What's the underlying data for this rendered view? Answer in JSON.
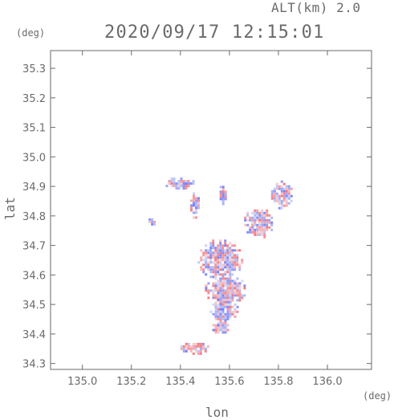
{
  "chart_data": {
    "type": "heatmap",
    "title": "2020/09/17 12:15:01",
    "subtitle": "ALT(km) 2.0",
    "xlabel": "lon",
    "ylabel": "lat",
    "x_unit": "(deg)",
    "y_unit": "(deg)",
    "xlim": [
      134.87,
      136.18
    ],
    "ylim": [
      34.28,
      35.36
    ],
    "x_ticks": [
      135.0,
      135.2,
      135.4,
      135.6,
      135.8,
      136.0
    ],
    "x_tick_labels": [
      "135.0",
      "135.2",
      "135.4",
      "135.6",
      "135.8",
      "136.0"
    ],
    "y_ticks": [
      34.3,
      34.4,
      34.5,
      34.6,
      34.7,
      34.8,
      34.9,
      35.0,
      35.1,
      35.2,
      35.3
    ],
    "y_tick_labels": [
      "34.3",
      "34.4",
      "34.5",
      "34.6",
      "34.7",
      "34.8",
      "34.9",
      "35.0",
      "35.1",
      "35.2",
      "35.3"
    ],
    "grid": false,
    "colors": {
      "positive": "#e8505a",
      "negative": "#5060e0",
      "axis": "#6a6a6a"
    },
    "regions": [
      {
        "lon": [
          135.47,
          135.66
        ],
        "lat": [
          34.58,
          34.72
        ],
        "color": "mixed"
      },
      {
        "lon": [
          135.5,
          135.67
        ],
        "lat": [
          34.5,
          34.6
        ],
        "color": "mixed"
      },
      {
        "lon": [
          135.52,
          135.64
        ],
        "lat": [
          34.44,
          34.52
        ],
        "color": "negative"
      },
      {
        "lon": [
          135.53,
          135.6
        ],
        "lat": [
          34.4,
          34.45
        ],
        "color": "mixed"
      },
      {
        "lon": [
          135.33,
          135.46
        ],
        "lat": [
          34.89,
          34.93
        ],
        "color": "mixed"
      },
      {
        "lon": [
          135.77,
          135.86
        ],
        "lat": [
          34.82,
          34.92
        ],
        "color": "mixed"
      },
      {
        "lon": [
          135.66,
          135.78
        ],
        "lat": [
          34.72,
          34.83
        ],
        "color": "mixed"
      },
      {
        "lon": [
          135.4,
          135.52
        ],
        "lat": [
          34.33,
          34.37
        ],
        "color": "mixed"
      },
      {
        "lon": [
          135.27,
          135.3
        ],
        "lat": [
          34.76,
          34.8
        ],
        "color": "negative"
      },
      {
        "lon": [
          135.44,
          135.48
        ],
        "lat": [
          34.79,
          34.88
        ],
        "color": "mixed"
      },
      {
        "lon": [
          135.56,
          135.59
        ],
        "lat": [
          34.84,
          34.91
        ],
        "color": "mixed"
      }
    ]
  }
}
